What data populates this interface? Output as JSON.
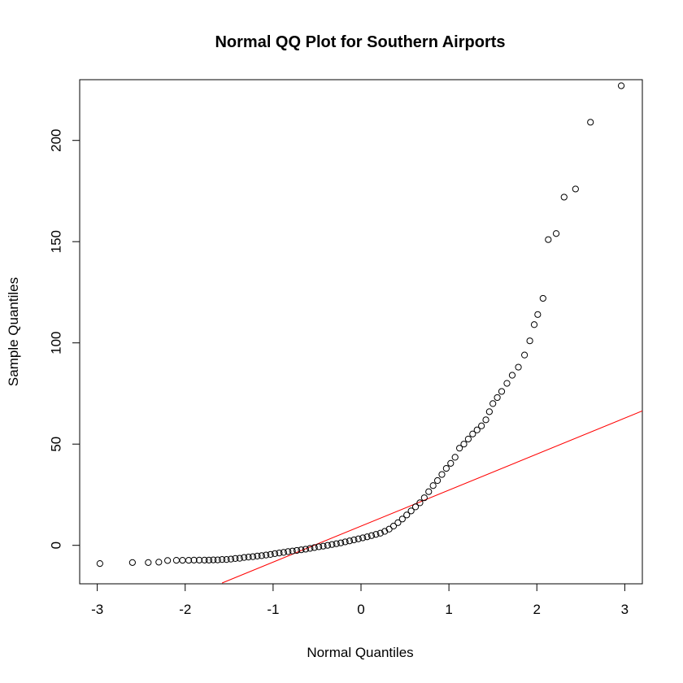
{
  "chart_data": {
    "type": "scatter",
    "title": "Normal QQ Plot for Southern Airports",
    "xlabel": "Normal Quantiles",
    "ylabel": "Sample Quantiles",
    "xlim": [
      -3.2,
      3.2
    ],
    "ylim": [
      -19,
      230
    ],
    "xticks": [
      -3,
      -2,
      -1,
      0,
      1,
      2,
      3
    ],
    "yticks": [
      0,
      50,
      100,
      150,
      200
    ],
    "grid": false,
    "point_color": "#000000",
    "reference_line": {
      "color": "#ff0000",
      "points": [
        [
          -1.58,
          -18.6
        ],
        [
          3.2,
          66.4
        ]
      ]
    },
    "points": [
      [
        -2.97,
        -9
      ],
      [
        -2.6,
        -8.5
      ],
      [
        -2.42,
        -8.5
      ],
      [
        -2.3,
        -8.3
      ],
      [
        -2.2,
        -7.5
      ],
      [
        -2.1,
        -7.4
      ],
      [
        -2.03,
        -7.4
      ],
      [
        -1.96,
        -7.4
      ],
      [
        -1.9,
        -7.3
      ],
      [
        -1.84,
        -7.3
      ],
      [
        -1.78,
        -7.3
      ],
      [
        -1.73,
        -7.3
      ],
      [
        -1.68,
        -7.2
      ],
      [
        -1.63,
        -7.2
      ],
      [
        -1.58,
        -7.0
      ],
      [
        -1.53,
        -7.0
      ],
      [
        -1.48,
        -6.8
      ],
      [
        -1.43,
        -6.5
      ],
      [
        -1.38,
        -6.4
      ],
      [
        -1.33,
        -6.0
      ],
      [
        -1.28,
        -5.8
      ],
      [
        -1.23,
        -5.6
      ],
      [
        -1.18,
        -5.3
      ],
      [
        -1.13,
        -5.1
      ],
      [
        -1.08,
        -4.8
      ],
      [
        -1.03,
        -4.5
      ],
      [
        -0.98,
        -4.1
      ],
      [
        -0.93,
        -3.8
      ],
      [
        -0.88,
        -3.5
      ],
      [
        -0.83,
        -3.1
      ],
      [
        -0.78,
        -2.8
      ],
      [
        -0.73,
        -2.5
      ],
      [
        -0.68,
        -2.2
      ],
      [
        -0.63,
        -1.9
      ],
      [
        -0.58,
        -1.5
      ],
      [
        -0.53,
        -1.1
      ],
      [
        -0.48,
        -0.7
      ],
      [
        -0.43,
        -0.4
      ],
      [
        -0.38,
        0.0
      ],
      [
        -0.33,
        0.4
      ],
      [
        -0.28,
        0.8
      ],
      [
        -0.23,
        1.2
      ],
      [
        -0.18,
        1.7
      ],
      [
        -0.13,
        2.2
      ],
      [
        -0.08,
        2.7
      ],
      [
        -0.03,
        3.2
      ],
      [
        0.02,
        3.7
      ],
      [
        0.07,
        4.2
      ],
      [
        0.12,
        4.8
      ],
      [
        0.17,
        5.4
      ],
      [
        0.22,
        6.0
      ],
      [
        0.27,
        6.9
      ],
      [
        0.32,
        8.0
      ],
      [
        0.37,
        9.5
      ],
      [
        0.42,
        11.2
      ],
      [
        0.47,
        13.0
      ],
      [
        0.52,
        15.0
      ],
      [
        0.57,
        17.0
      ],
      [
        0.62,
        19.0
      ],
      [
        0.67,
        21.0
      ],
      [
        0.72,
        23.5
      ],
      [
        0.77,
        26.5
      ],
      [
        0.82,
        29.5
      ],
      [
        0.87,
        32.0
      ],
      [
        0.92,
        35.0
      ],
      [
        0.97,
        38.0
      ],
      [
        1.02,
        40.5
      ],
      [
        1.07,
        43.5
      ],
      [
        1.12,
        48.0
      ],
      [
        1.17,
        50.0
      ],
      [
        1.22,
        52.5
      ],
      [
        1.27,
        55.0
      ],
      [
        1.32,
        57.0
      ],
      [
        1.37,
        59.0
      ],
      [
        1.42,
        62.0
      ],
      [
        1.46,
        66.0
      ],
      [
        1.5,
        70.0
      ],
      [
        1.55,
        73.0
      ],
      [
        1.6,
        76.0
      ],
      [
        1.66,
        80.0
      ],
      [
        1.72,
        84.0
      ],
      [
        1.79,
        88.0
      ],
      [
        1.86,
        94.0
      ],
      [
        1.92,
        101.0
      ],
      [
        1.97,
        109.0
      ],
      [
        2.01,
        114.0
      ],
      [
        2.07,
        122.0
      ],
      [
        2.13,
        151.0
      ],
      [
        2.22,
        154.0
      ],
      [
        2.31,
        172.0
      ],
      [
        2.44,
        176.0
      ],
      [
        2.61,
        209.0
      ],
      [
        2.96,
        227.0
      ]
    ]
  }
}
